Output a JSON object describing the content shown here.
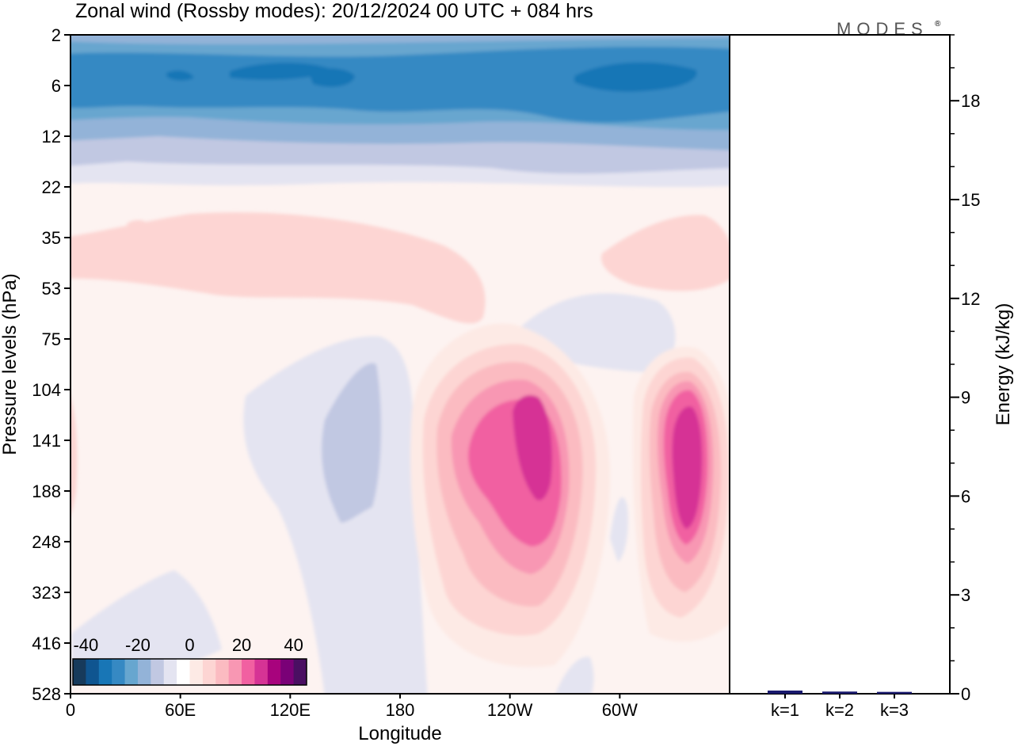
{
  "chart_data": [
    {
      "type": "heatmap",
      "title": "Zonal wind (Rossby modes):  20/12/2024  00 UTC  + 084 hrs",
      "xlabel": "Longitude",
      "ylabel": "Pressure levels (hPa)",
      "x_ticks": [
        {
          "lon": 0,
          "label": "0"
        },
        {
          "lon": 60,
          "label": "60E"
        },
        {
          "lon": 120,
          "label": "120E"
        },
        {
          "lon": 180,
          "label": "180"
        },
        {
          "lon": 240,
          "label": "120W"
        },
        {
          "lon": 300,
          "label": "60W"
        }
      ],
      "xlim": [
        0,
        360
      ],
      "y_levels": [
        "2",
        "6",
        "12",
        "22",
        "35",
        "53",
        "75",
        "104",
        "141",
        "188",
        "248",
        "323",
        "416",
        "528"
      ],
      "y_scale": "model levels (inverted, top = 2 hPa)",
      "colorbar": {
        "labels": [
          "-40",
          "-20",
          "0",
          "20",
          "40"
        ],
        "range": [
          -45,
          45
        ],
        "step": 5,
        "colors": [
          "#173a5b",
          "#0f5590",
          "#1876b6",
          "#3689c3",
          "#67a6cf",
          "#93b3d8",
          "#c1c8e2",
          "#e4e4f1",
          "#ffffff",
          "#fdeae5",
          "#fdd5d3",
          "#fbbbc1",
          "#f897b3",
          "#f160a1",
          "#d63395",
          "#a8037d",
          "#7a0177",
          "#4a0f62"
        ],
        "placement": "bottom-left inside plot"
      },
      "regions": [
        {
          "name": "upper easterly jet",
          "levels": "2-16 hPa",
          "lon_range": [
            0,
            360
          ],
          "min_value": -40
        },
        {
          "name": "weak westerlies",
          "levels": "22-60 hPa",
          "lon_range": [
            0,
            360
          ],
          "max_value": 10
        },
        {
          "name": "westerly maximum 1",
          "center_lon": 250,
          "center_level": "150 hPa",
          "max_value": 35
        },
        {
          "name": "westerly maximum 2",
          "center_lon": 337,
          "center_level": "160 hPa",
          "max_value": 35
        },
        {
          "name": "weak easterlies",
          "center_lon": 148,
          "center_level": "150 hPa",
          "min_value": -10
        }
      ]
    },
    {
      "type": "bar",
      "categories": [
        "k=1",
        "k=2",
        "k=3"
      ],
      "values": [
        0.06,
        0.03,
        0.02
      ],
      "ylabel": "Energy (kJ/kg)",
      "ylim": [
        0,
        20
      ],
      "y_ticks": [
        0,
        3,
        6,
        9,
        12,
        15,
        18
      ],
      "bar_color": "#1a1a6e"
    }
  ],
  "logo": {
    "text": "MODES",
    "mark": "®"
  }
}
